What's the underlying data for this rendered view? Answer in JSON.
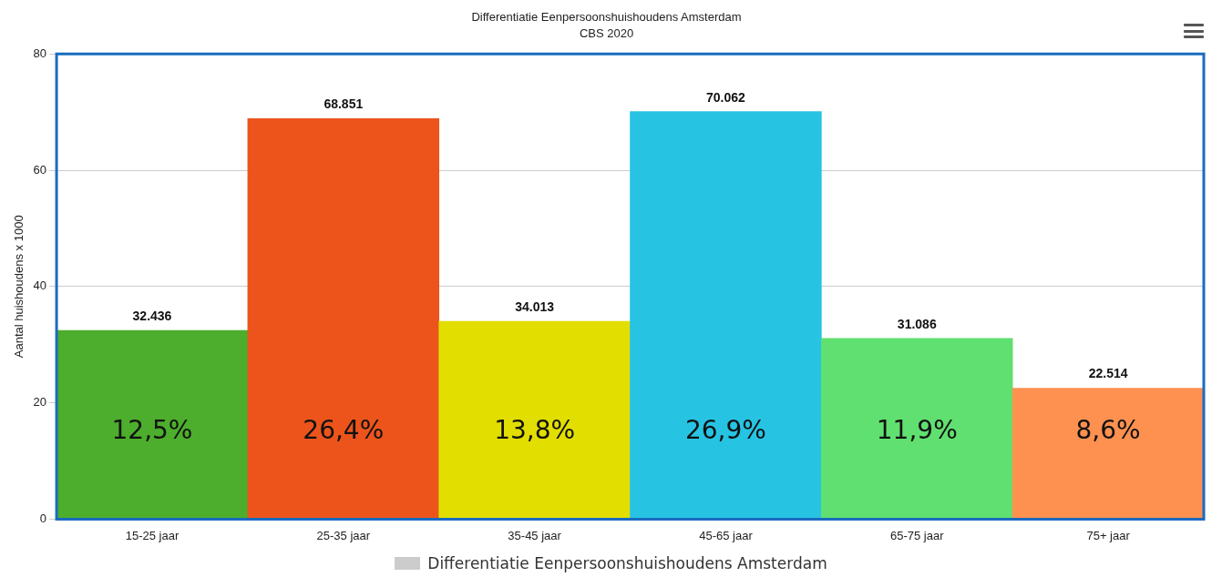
{
  "chart_data": {
    "type": "bar",
    "title": "Differentiatie Eenpersoonshuishoudens Amsterdam",
    "subtitle": "CBS 2020",
    "ylabel": "Aantal huishoudens x 1000",
    "categories": [
      "15-25 jaar",
      "25-35 jaar",
      "35-45 jaar",
      "45-65 jaar",
      "65-75 jaar",
      "75+ jaar"
    ],
    "series": [
      {
        "name": "Differentiatie Eenpersoonshuishoudens Amsterdam",
        "color": "#cccccc",
        "colors": [
          "#4cae2c",
          "#ec541c",
          "#e2de00",
          "#27c3e3",
          "#60e070",
          "#ff9150"
        ],
        "values": [
          32.436,
          68.851,
          34.013,
          70.062,
          31.086,
          22.514
        ]
      }
    ],
    "ylim": [
      0,
      80
    ],
    "yticks": [
      0,
      20,
      40,
      60,
      80
    ],
    "grid": "y",
    "legend": "bottom",
    "data_labels": true,
    "annotations": [
      "12,5%",
      "26,4%",
      "13,8%",
      "26,9%",
      "11,9%",
      "8,6%"
    ]
  }
}
